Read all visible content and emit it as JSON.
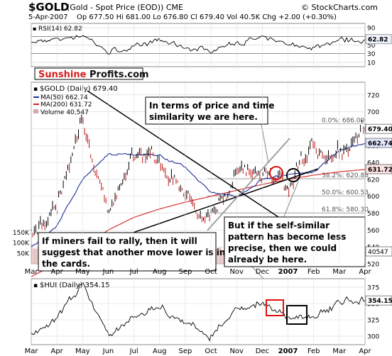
{
  "header": {
    "ticker": "$GOLD",
    "name": "(Gold - Spot Price (EOD)) CME",
    "source": "© StockCharts.com",
    "date": "5-Apr-2007",
    "quote": "Op 677.50  Hi 681.00  Lo 676.80  Cl 679.40  Vol 40.5K  Chg +2.00 (+0.30%)"
  },
  "brand": {
    "part1": "Sunshine",
    "part2": "Profits.com"
  },
  "colors": {
    "price": "#000000",
    "ma50": "#1f2d9a",
    "ma200": "#d42020",
    "volume": "#d8a6a6",
    "rsi_fill": "#3a8a3a",
    "red_box": "#e01010",
    "trendline": "#000000",
    "gray_line": "#999999",
    "grid": "#d8d8d8"
  },
  "rsi": {
    "label": "RSI(14) 62.82",
    "ylim": [
      0,
      100
    ],
    "ticks": [
      "90",
      "70",
      "50",
      "30",
      "10"
    ],
    "last": "62.82"
  },
  "price_panel": {
    "legend": {
      "main": "$GOLD (Daily) 679.40",
      "ma50": "MA(50) 662.74",
      "ma200": "MA(200) 631.72",
      "volume": "Volume 40,547"
    },
    "ticks": [
      "720",
      "700",
      "680",
      "660",
      "640",
      "620",
      "600",
      "580",
      "560",
      "540",
      "520"
    ],
    "vol_ticks": [
      "150K",
      "100K",
      "50K"
    ],
    "right_labels": {
      "last": "679.40",
      "ma50": "662.74",
      "ma200": "631.72",
      "vol": "40547"
    },
    "fib": [
      {
        "label": "0.0%: 686.00",
        "value": 686
      },
      {
        "label": "38.2%: 620.88",
        "value": 620.88
      },
      {
        "label": "50.0%: 600.53",
        "value": 600.53
      },
      {
        "label": "61.8%: 580.30",
        "value": 580.3
      }
    ],
    "annotations": {
      "top": "In terms of price and time similarity we are here.",
      "right": "But if the self-similar pattern has become less precise, then we could already be here.",
      "left": "If miners fail to rally, then it will suggest that another move lower is in the cards."
    }
  },
  "hui": {
    "label": "$HUI (Daily) 354.15",
    "ylim": [
      287,
      388
    ],
    "ticks": [
      "375",
      "350",
      "325",
      "300"
    ],
    "last": "354.15"
  },
  "x_axis": {
    "labels": [
      "Mar",
      "Apr",
      "May",
      "Jun",
      "Jul",
      "Aug",
      "Sep",
      "Oct",
      "Nov",
      "Dec",
      "2007",
      "Feb",
      "Mar",
      "Apr"
    ]
  },
  "chart_data": [
    {
      "type": "line",
      "title": "RSI(14) 62.82",
      "ylim": [
        0,
        100
      ],
      "x": [
        "Mar",
        "Apr",
        "May",
        "Jun",
        "Jul",
        "Aug",
        "Sep",
        "Oct",
        "Nov",
        "Dec",
        "2007",
        "Feb",
        "Mar",
        "Apr"
      ],
      "series": [
        {
          "name": "RSI(14)",
          "values": [
            56,
            62,
            74,
            34,
            44,
            60,
            44,
            38,
            56,
            64,
            53,
            44,
            62,
            63
          ]
        }
      ]
    },
    {
      "type": "line",
      "title": "$GOLD (Daily) 679.40",
      "ylim": [
        520,
        735
      ],
      "x": [
        "Mar",
        "Apr",
        "May",
        "Jun",
        "Jul",
        "Aug",
        "Sep",
        "Oct",
        "Nov",
        "Dec",
        "2007",
        "Feb",
        "Mar",
        "Apr"
      ],
      "series": [
        {
          "name": "$GOLD (Daily) 679.40",
          "values": [
            560,
            590,
            690,
            580,
            650,
            640,
            600,
            575,
            630,
            625,
            615,
            660,
            650,
            679.4
          ]
        },
        {
          "name": "MA(50) 662.74",
          "values": [
            540,
            565,
            620,
            650,
            650,
            648,
            635,
            605,
            600,
            620,
            625,
            628,
            655,
            662.74
          ]
        },
        {
          "name": "MA(200) 631.72",
          "values": [
            505,
            520,
            540,
            560,
            575,
            585,
            593,
            600,
            607,
            614,
            620,
            625,
            629,
            631.72
          ]
        }
      ]
    },
    {
      "type": "bar",
      "title": "Volume 40,547",
      "ylim": [
        0,
        160000
      ],
      "x": [
        "Mar",
        "Apr",
        "May",
        "Jun",
        "Jul",
        "Aug",
        "Sep",
        "Oct",
        "Nov",
        "Dec",
        "2007",
        "Feb",
        "Mar",
        "Apr"
      ],
      "series": [
        {
          "name": "Volume 40,547",
          "values": [
            95000,
            80000,
            70000,
            55000,
            45000,
            50000,
            60000,
            55000,
            40000,
            45000,
            60000,
            80000,
            75000,
            40547
          ]
        }
      ]
    },
    {
      "type": "line",
      "title": "$HUI (Daily) 354.15",
      "ylim": [
        287,
        388
      ],
      "x": [
        "Mar",
        "Apr",
        "May",
        "Jun",
        "Jul",
        "Aug",
        "Sep",
        "Oct",
        "Nov",
        "Dec",
        "2007",
        "Feb",
        "Mar",
        "Apr"
      ],
      "series": [
        {
          "name": "$HUI (Daily) 354.15",
          "values": [
            305,
            325,
            380,
            300,
            330,
            345,
            320,
            300,
            340,
            350,
            330,
            330,
            350,
            354.15
          ]
        }
      ]
    }
  ]
}
